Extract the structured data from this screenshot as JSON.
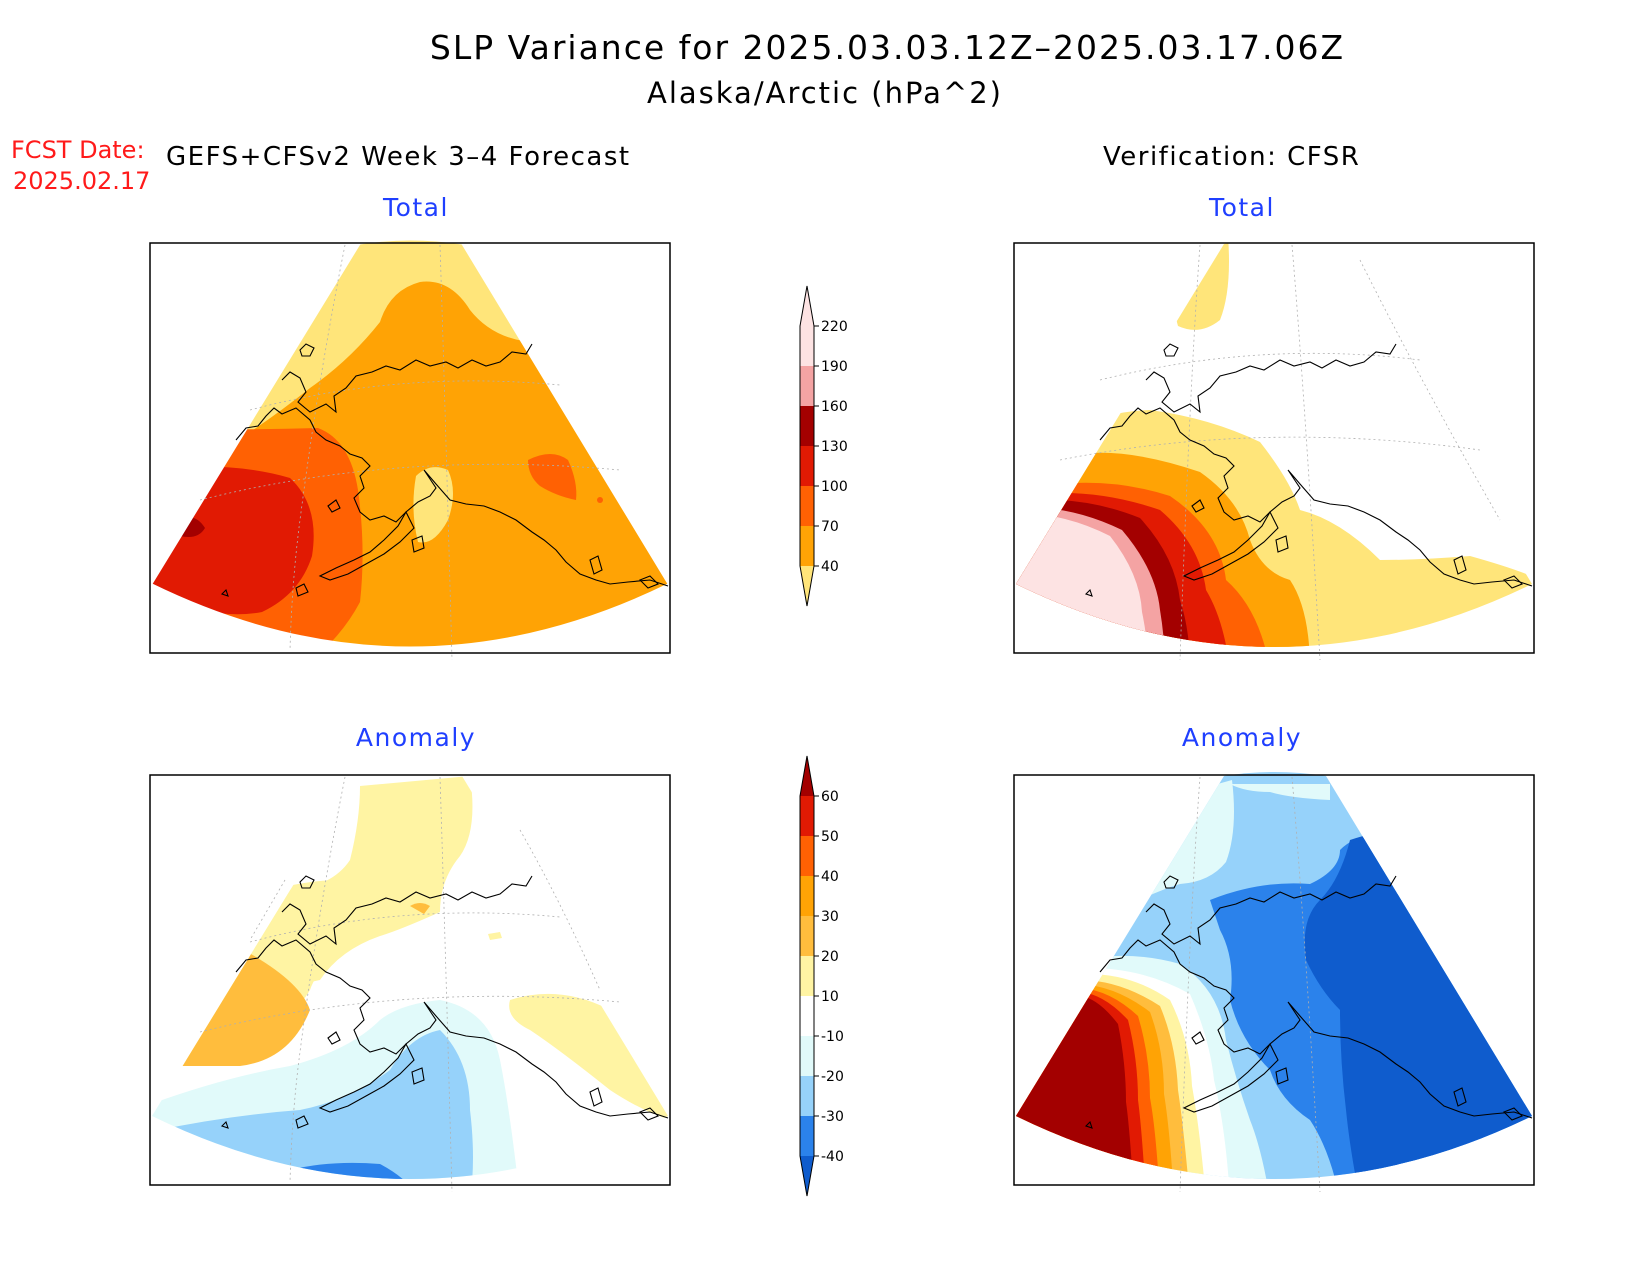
{
  "title": "SLP Variance for 2025.03.03.12Z–2025.03.17.06Z",
  "subtitle": "Alaska/Arctic (hPa^2)",
  "fcst_label": "FCST Date:",
  "fcst_date": "2025.02.17",
  "left_header": "GEFS+CFSv2 Week 3–4 Forecast",
  "right_header": "Verification: CFSR",
  "panels": [
    {
      "id": "forecast-total",
      "title": "Total"
    },
    {
      "id": "verification-total",
      "title": "Total"
    },
    {
      "id": "forecast-anomaly",
      "title": "Anomaly"
    },
    {
      "id": "verification-anomaly",
      "title": "Anomaly"
    }
  ],
  "total_colorbar": {
    "labels": [
      "40",
      "70",
      "100",
      "130",
      "160",
      "190",
      "220"
    ],
    "colors": [
      "#ffe57a",
      "#ffa305",
      "#ff6103",
      "#e11a03",
      "#a30000",
      "#f4a3a3",
      "#fde3e3"
    ]
  },
  "anomaly_colorbar": {
    "labels": [
      "-40",
      "-30",
      "-20",
      "-10",
      "10",
      "20",
      "30",
      "40",
      "50",
      "60"
    ],
    "colors": [
      "#0f5ccd",
      "#2b82eb",
      "#96d2fa",
      "#e1fafa",
      "#ffffff",
      "#fff4a3",
      "#ffbd3d",
      "#ffa305",
      "#ff6103",
      "#e11a03",
      "#a30000"
    ]
  }
}
